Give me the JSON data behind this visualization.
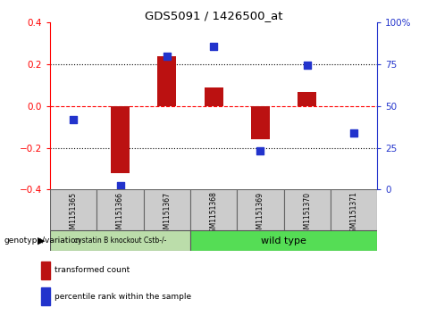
{
  "title": "GDS5091 / 1426500_at",
  "samples": [
    "GSM1151365",
    "GSM1151366",
    "GSM1151367",
    "GSM1151368",
    "GSM1151369",
    "GSM1151370",
    "GSM1151371"
  ],
  "red_bars": [
    0.0,
    -0.32,
    0.24,
    0.09,
    -0.16,
    0.07,
    0.0
  ],
  "blue_dots": [
    -0.065,
    -0.38,
    0.24,
    0.285,
    -0.215,
    0.195,
    -0.13
  ],
  "ylim_left": [
    -0.4,
    0.4
  ],
  "ylim_right": [
    0,
    100
  ],
  "yticks_left": [
    -0.4,
    -0.2,
    0.0,
    0.2,
    0.4
  ],
  "yticks_right": [
    0,
    25,
    50,
    75,
    100
  ],
  "ytick_labels_right": [
    "0",
    "25",
    "50",
    "75",
    "100%"
  ],
  "hlines": [
    -0.2,
    0.0,
    0.2
  ],
  "hline_colors": [
    "black",
    "red",
    "black"
  ],
  "hline_styles": [
    "dotted",
    "dashed",
    "dotted"
  ],
  "group1_label": "cystatin B knockout Cstb-/-",
  "group2_label": "wild type",
  "group1_count": 3,
  "group_label_title": "genotype/variation",
  "legend_red": "transformed count",
  "legend_blue": "percentile rank within the sample",
  "bar_color": "#bb1111",
  "dot_color": "#2233cc",
  "bar_width": 0.4,
  "dot_size": 28,
  "group1_color": "#bbddaa",
  "group2_color": "#55dd55",
  "sample_bg": "#cccccc",
  "background_color": "#ffffff"
}
